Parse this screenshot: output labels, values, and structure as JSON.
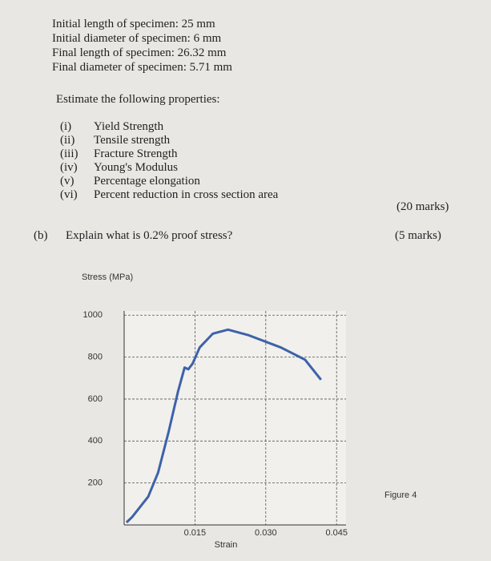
{
  "specimen": [
    "Initial length of specimen: 25 mm",
    "Initial diameter of specimen: 6 mm",
    "Final length of specimen: 26.32 mm",
    "Final diameter of specimen: 5.71 mm"
  ],
  "prompt": "Estimate the following properties:",
  "properties": [
    {
      "numeral": "(i)",
      "text": "Yield Strength"
    },
    {
      "numeral": "(ii)",
      "text": "Tensile strength"
    },
    {
      "numeral": "(iii)",
      "text": "Fracture Strength"
    },
    {
      "numeral": "(iv)",
      "text": "Young's Modulus"
    },
    {
      "numeral": "(v)",
      "text": "Percentage elongation"
    },
    {
      "numeral": "(vi)",
      "text": "Percent reduction in cross section area"
    }
  ],
  "part_a_marks": "(20 marks)",
  "part_b": {
    "label": "(b)",
    "question": "Explain what is 0.2% proof stress?",
    "marks": "(5 marks)"
  },
  "figure_caption": "Figure 4",
  "chart_data": {
    "type": "line",
    "ylabel": "Stress (MPa)",
    "xlabel": "Strain",
    "color": "#3d62a8",
    "x": [
      0.0005,
      0.0017,
      0.0051,
      0.0072,
      0.0094,
      0.0114,
      0.0128,
      0.0136,
      0.0145,
      0.016,
      0.0188,
      0.022,
      0.0264,
      0.0332,
      0.0383,
      0.0417
    ],
    "values": [
      12,
      38,
      135,
      250,
      442,
      635,
      750,
      742,
      769,
      846,
      912,
      931,
      904,
      846,
      788,
      692
    ],
    "xlim": [
      0,
      0.047
    ],
    "ylim": [
      0,
      1020
    ],
    "xticks": [
      0.015,
      {
        "value": 0.03,
        "label": "0.030"
      },
      0.045
    ],
    "yticks": [
      200,
      400,
      600,
      800,
      1000
    ],
    "grid": true
  }
}
